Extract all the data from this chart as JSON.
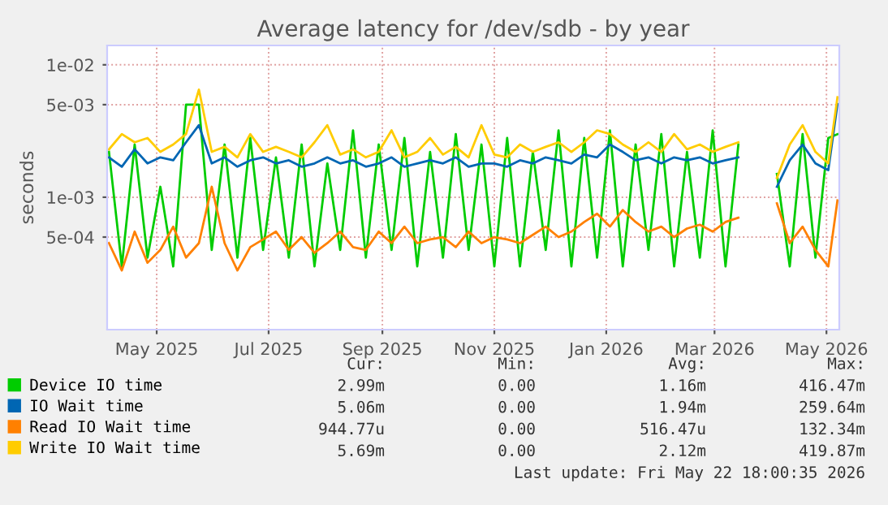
{
  "chart_data": {
    "type": "line",
    "title": "Average latency for /dev/sdb - by year",
    "ylabel": "seconds",
    "x": [
      "2025-04-20",
      "2025-04-27",
      "2025-05-04",
      "2025-05-11",
      "2025-05-18",
      "2025-05-25",
      "2025-06-01",
      "2025-06-08",
      "2025-06-15",
      "2025-06-22",
      "2025-06-29",
      "2025-07-06",
      "2025-07-13",
      "2025-07-20",
      "2025-07-27",
      "2025-08-03",
      "2025-08-10",
      "2025-08-17",
      "2025-08-24",
      "2025-08-31",
      "2025-09-07",
      "2025-09-14",
      "2025-09-21",
      "2025-09-28",
      "2025-10-05",
      "2025-10-12",
      "2025-10-19",
      "2025-10-26",
      "2025-11-02",
      "2025-11-09",
      "2025-11-16",
      "2025-11-23",
      "2025-11-30",
      "2025-12-07",
      "2025-12-14",
      "2025-12-21",
      "2025-12-28",
      "2026-01-04",
      "2026-01-11",
      "2026-01-18",
      "2026-01-25",
      "2026-02-01",
      "2026-02-08",
      "2026-02-15",
      "2026-02-22",
      "2026-03-01",
      "2026-03-08",
      "2026-03-15",
      "2026-03-22",
      "2026-03-29",
      "2026-04-05",
      "2026-04-12",
      "2026-04-19",
      "2026-04-26",
      "2026-05-03",
      "2026-05-10",
      "2026-05-17",
      "2026-05-22"
    ],
    "series": [
      {
        "name": "Device IO time",
        "color": "#00cc00",
        "values": [
          0.0022,
          0.0003,
          0.0025,
          0.00035,
          0.0012,
          0.0003,
          0.005,
          0.005,
          0.0004,
          0.0025,
          0.00035,
          0.0028,
          0.0004,
          0.002,
          0.00035,
          0.0025,
          0.0003,
          0.0018,
          0.0004,
          0.0032,
          0.00035,
          0.0025,
          0.0004,
          0.0028,
          0.0003,
          0.0022,
          0.00035,
          0.003,
          0.0004,
          0.0025,
          0.0003,
          0.0028,
          0.0003,
          0.0022,
          0.0004,
          0.0032,
          0.0003,
          0.0028,
          0.00035,
          0.0032,
          0.0003,
          0.0025,
          0.0004,
          0.003,
          0.0003,
          0.0022,
          0.00035,
          0.0032,
          0.0003,
          0.0025,
          null,
          null,
          0.0015,
          0.0003,
          0.003,
          0.00035,
          0.0028,
          0.00299
        ]
      },
      {
        "name": "IO Wait time",
        "color": "#0066b3",
        "values": [
          0.002,
          0.0017,
          0.0023,
          0.0018,
          0.002,
          0.0019,
          0.0026,
          0.0035,
          0.0018,
          0.002,
          0.0017,
          0.0019,
          0.002,
          0.0018,
          0.0019,
          0.0017,
          0.0018,
          0.002,
          0.0018,
          0.0019,
          0.0017,
          0.0018,
          0.002,
          0.0017,
          0.0018,
          0.0019,
          0.0018,
          0.002,
          0.0017,
          0.0018,
          0.0018,
          0.0017,
          0.0019,
          0.0018,
          0.002,
          0.0019,
          0.0018,
          0.0021,
          0.002,
          0.0025,
          0.0022,
          0.0019,
          0.002,
          0.0018,
          0.002,
          0.0019,
          0.002,
          0.0018,
          0.0019,
          0.002,
          null,
          null,
          0.0012,
          0.0019,
          0.0025,
          0.0018,
          0.0016,
          0.00506
        ]
      },
      {
        "name": "Read IO Wait time",
        "color": "#ff8000",
        "values": [
          0.00045,
          0.00028,
          0.00055,
          0.00032,
          0.0004,
          0.0006,
          0.00035,
          0.00045,
          0.0012,
          0.00045,
          0.00028,
          0.00042,
          0.00048,
          0.00055,
          0.0004,
          0.0005,
          0.00038,
          0.00045,
          0.00055,
          0.00042,
          0.0004,
          0.00055,
          0.00045,
          0.0006,
          0.00045,
          0.00048,
          0.0005,
          0.00042,
          0.00055,
          0.00045,
          0.0005,
          0.00048,
          0.00045,
          0.00052,
          0.0006,
          0.0005,
          0.00055,
          0.00065,
          0.00075,
          0.0006,
          0.0008,
          0.00065,
          0.00055,
          0.0006,
          0.0005,
          0.00058,
          0.00062,
          0.00055,
          0.00065,
          0.0007,
          null,
          null,
          0.0009,
          0.00045,
          0.0006,
          0.0004,
          0.0003,
          0.00094477
        ]
      },
      {
        "name": "Write IO Wait time",
        "color": "#ffcc00",
        "values": [
          0.0023,
          0.003,
          0.0026,
          0.0028,
          0.0022,
          0.0025,
          0.003,
          0.0065,
          0.0022,
          0.0024,
          0.002,
          0.003,
          0.0022,
          0.0024,
          0.0022,
          0.002,
          0.0026,
          0.0035,
          0.0021,
          0.0023,
          0.002,
          0.0022,
          0.0032,
          0.002,
          0.0022,
          0.0028,
          0.0021,
          0.0024,
          0.002,
          0.0035,
          0.0021,
          0.002,
          0.0025,
          0.0022,
          0.0024,
          0.0026,
          0.0022,
          0.0026,
          0.0032,
          0.003,
          0.0025,
          0.0022,
          0.0026,
          0.0022,
          0.003,
          0.0023,
          0.0025,
          0.0022,
          0.0024,
          0.0026,
          null,
          null,
          0.0014,
          0.0025,
          0.0035,
          0.0022,
          0.0018,
          0.00569
        ]
      }
    ],
    "log": "y",
    "ylim": [
      0.0001,
      0.014
    ],
    "yticks": [
      {
        "value": 0.0005,
        "label": "5e-04"
      },
      {
        "value": 0.001,
        "label": "1e-03"
      },
      {
        "value": 0.005,
        "label": "5e-03"
      },
      {
        "value": 0.01,
        "label": "1e-02"
      }
    ],
    "xlim": [
      "2025-04-19",
      "2026-05-23"
    ],
    "xticks": [
      {
        "value": "2025-05-16",
        "label": "May 2025"
      },
      {
        "value": "2025-07-16",
        "label": "Jul 2025"
      },
      {
        "value": "2025-09-16",
        "label": "Sep 2025"
      },
      {
        "value": "2025-11-16",
        "label": "Nov 2025"
      },
      {
        "value": "2026-01-16",
        "label": "Jan 2026"
      },
      {
        "value": "2026-03-16",
        "label": "Mar 2026"
      },
      {
        "value": "2026-05-16",
        "label": "May 2026"
      }
    ],
    "grid": true,
    "legend": "bottom",
    "marker": "none",
    "line_style": "solid",
    "annotations": [
      "Cur:",
      "Min:",
      "Avg:",
      "Max:",
      "2.99m",
      "0.00",
      "1.16m",
      "416.47m",
      "5.06m",
      "0.00",
      "1.94m",
      "259.64m",
      "944.77u",
      "0.00",
      "516.47u",
      "132.34m",
      "5.69m",
      "0.00",
      "2.12m",
      "419.87m",
      "Last update: Fri May 22 18:00:35 2026"
    ]
  }
}
